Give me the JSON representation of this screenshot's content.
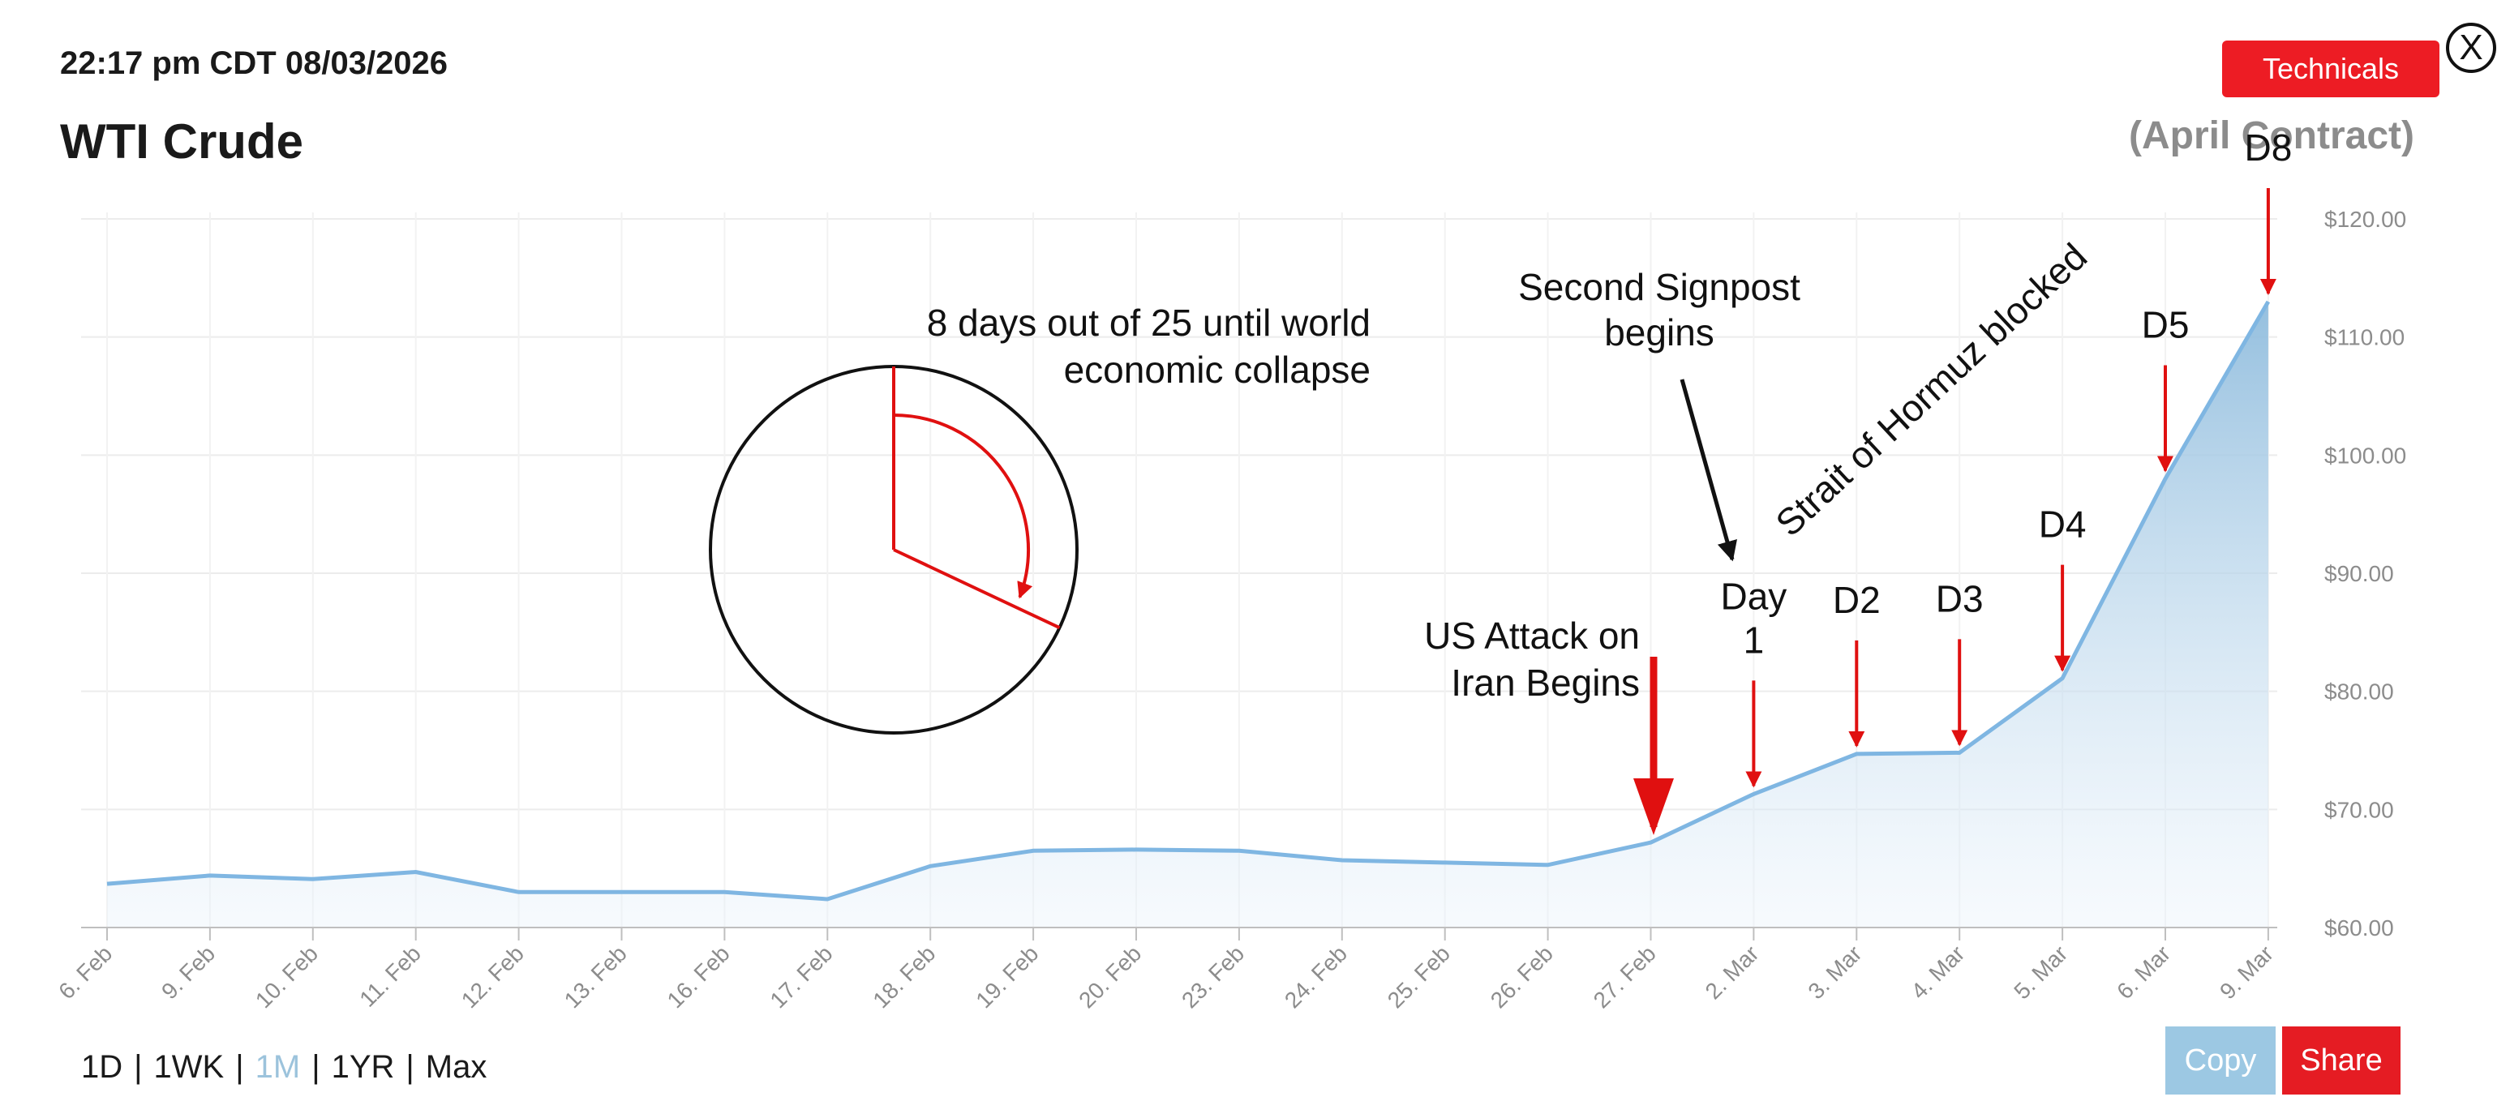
{
  "timestamp": "22:17 pm CDT 08/03/2026",
  "title": "WTI Crude",
  "subtitle": "(April Contract)",
  "buttons": {
    "technicals": "Technicals",
    "close": "X",
    "copy": "Copy",
    "share": "Share"
  },
  "ranges": [
    {
      "label": "1D",
      "active": false
    },
    {
      "label": "1WK",
      "active": false
    },
    {
      "label": "1M",
      "active": true
    },
    {
      "label": "1YR",
      "active": false
    },
    {
      "label": "Max",
      "active": false
    }
  ],
  "colors": {
    "line": "#7fb6e2",
    "annotation": "#e01010",
    "accent": "#ed1c24"
  },
  "chart_data": {
    "type": "area",
    "categories": [
      "6. Feb",
      "9. Feb",
      "10. Feb",
      "11. Feb",
      "12. Feb",
      "13. Feb",
      "16. Feb",
      "17. Feb",
      "18. Feb",
      "19. Feb",
      "20. Feb",
      "23. Feb",
      "24. Feb",
      "25. Feb",
      "26. Feb",
      "27. Feb",
      "2. Mar",
      "3. Mar",
      "4. Mar",
      "5. Mar",
      "6. Mar",
      "9. Mar"
    ],
    "values": [
      63.7,
      64.4,
      64.1,
      64.7,
      63.0,
      63.0,
      63.0,
      62.4,
      65.2,
      66.5,
      66.6,
      66.5,
      65.7,
      65.5,
      65.3,
      67.2,
      71.3,
      74.7,
      74.8,
      81.1,
      98.0,
      113.0
    ],
    "ylim": [
      60,
      120
    ],
    "yticks": [
      "$60.00",
      "$70.00",
      "$80.00",
      "$90.00",
      "$100.00",
      "$110.00",
      "$120.00"
    ],
    "yaxis_position": "right",
    "grid": true,
    "annotations": {
      "clock_text": [
        "8 days out of 25 until world",
        "economic collapse"
      ],
      "clock_fraction": 0.32,
      "attack_text": [
        "US Attack on",
        "Iran Begins"
      ],
      "signpost_text": [
        "Second Signpost",
        "begins"
      ],
      "hormuz_text": "Strait of Hormuz blocked",
      "day_labels": [
        {
          "category": "2. Mar",
          "lines": [
            "Day",
            "1"
          ]
        },
        {
          "category": "3. Mar",
          "lines": [
            "D2"
          ]
        },
        {
          "category": "4. Mar",
          "lines": [
            "D3"
          ]
        },
        {
          "category": "5. Mar",
          "lines": [
            "D4"
          ]
        },
        {
          "category": "6. Mar",
          "lines": [
            "D5"
          ]
        },
        {
          "category": "9. Mar",
          "lines": [
            "D8"
          ]
        }
      ]
    }
  }
}
